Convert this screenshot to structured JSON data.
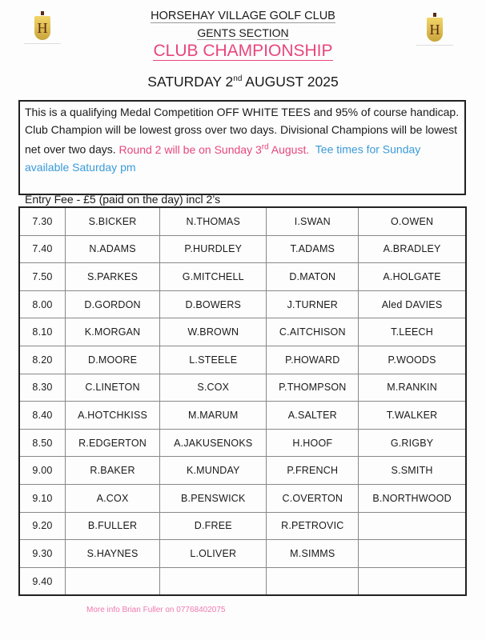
{
  "header": {
    "club": "HORSEHAY VILLAGE GOLF CLUB",
    "section": "GENTS SECTION",
    "event": "CLUB CHAMPIONSHIP",
    "date_day": "SATURDAY 2",
    "date_suffix": "nd",
    "date_rest": " AUGUST 2025",
    "logo_letter": "H"
  },
  "info": {
    "text1": "This is a qualifying Medal Competition OFF WHITE TEES and 95% of course handicap. Club Champion will be lowest gross over two days. Divisional Champions will be lowest net over two days. ",
    "round2": "Round 2 will be on Sunday 3",
    "round2_suffix": "rd",
    "round2_end": " August.",
    "tee_times": "Tee times for Sunday available Saturday pm",
    "entry_fee": "Entry Fee - £5 (paid on the day) incl 2’s"
  },
  "tee_sheet": [
    {
      "time": "7.30",
      "players": [
        "S.BICKER",
        "N.THOMAS",
        "I.SWAN",
        "O.OWEN"
      ]
    },
    {
      "time": "7.40",
      "players": [
        "N.ADAMS",
        "P.HURDLEY",
        "T.ADAMS",
        "A.BRADLEY"
      ]
    },
    {
      "time": "7.50",
      "players": [
        "S.PARKES",
        "G.MITCHELL",
        "D.MATON",
        "A.HOLGATE"
      ]
    },
    {
      "time": "8.00",
      "players": [
        "D.GORDON",
        "D.BOWERS",
        "J.TURNER",
        "Aled DAVIES"
      ]
    },
    {
      "time": "8.10",
      "players": [
        "K.MORGAN",
        "W.BROWN",
        "C.AITCHISON",
        "T.LEECH"
      ]
    },
    {
      "time": "8.20",
      "players": [
        "D.MOORE",
        "L.STEELE",
        "P.HOWARD",
        "P.WOODS"
      ]
    },
    {
      "time": "8.30",
      "players": [
        "C.LINETON",
        "S.COX",
        "P.THOMPSON",
        "M.RANKIN"
      ]
    },
    {
      "time": "8.40",
      "players": [
        "A.HOTCHKISS",
        "M.MARUM",
        "A.SALTER",
        "T.WALKER"
      ]
    },
    {
      "time": "8.50",
      "players": [
        "R.EDGERTON",
        "A.JAKUSENOKS",
        "H.HOOF",
        "G.RIGBY"
      ]
    },
    {
      "time": "9.00",
      "players": [
        "R.BAKER",
        "K.MUNDAY",
        "P.FRENCH",
        "S.SMITH"
      ]
    },
    {
      "time": "9.10",
      "players": [
        "A.COX",
        "B.PENSWICK",
        "C.OVERTON",
        "B.NORTHWOOD"
      ]
    },
    {
      "time": "9.20",
      "players": [
        "B.FULLER",
        "D.FREE",
        "R.PETROVIC",
        ""
      ]
    },
    {
      "time": "9.30",
      "players": [
        "S.HAYNES",
        "L.OLIVER",
        "M.SIMMS",
        ""
      ]
    },
    {
      "time": "9.40",
      "players": [
        "",
        "",
        "",
        ""
      ]
    }
  ],
  "footer": "More info Brian Fuller on 07768402075",
  "colors": {
    "pink": "#e8467c",
    "blue": "#3a9ad9",
    "footer_pink": "#f07ab0"
  }
}
